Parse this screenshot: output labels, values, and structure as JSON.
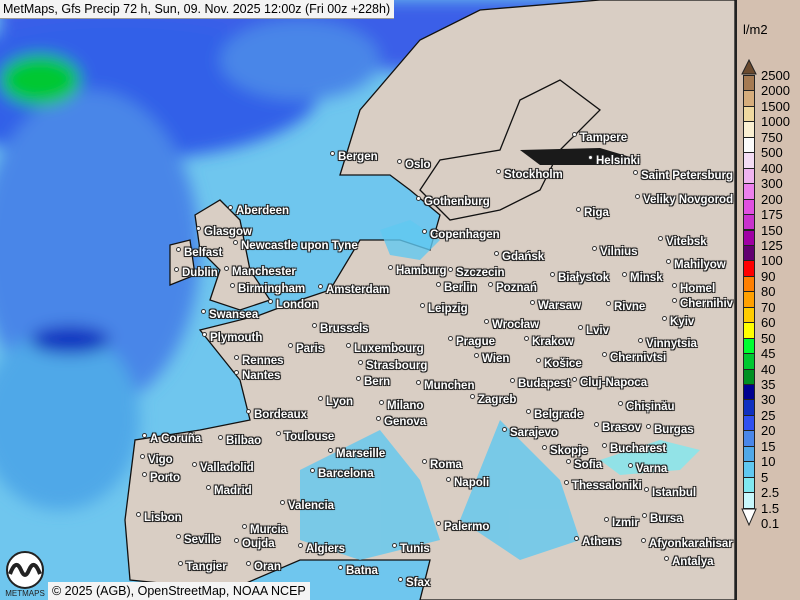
{
  "title": "MetMaps, Gfs Precip 72 h, Sun, 09. Nov. 2025 12:00z (Fri 00z +228h)",
  "credit": "© 2025 (AGB), OpenStreetMap, NOAA NCEP",
  "logo_text": "METMAPS",
  "legend": {
    "unit": "l/m2",
    "labels": [
      "2500",
      "2000",
      "1500",
      "1000",
      "750",
      "500",
      "400",
      "300",
      "200",
      "175",
      "150",
      "125",
      "100",
      "90",
      "80",
      "70",
      "60",
      "50",
      "45",
      "40",
      "35",
      "30",
      "25",
      "20",
      "15",
      "10",
      "5",
      "2.5",
      "1.5",
      "0.1"
    ],
    "colors": [
      "#a57a52",
      "#d6ad7c",
      "#f0d9a0",
      "#fbf0d2",
      "#fcfcfc",
      "#f4dcf4",
      "#f0b4f0",
      "#ec80ec",
      "#e050e0",
      "#c832cc",
      "#a000a4",
      "#620070",
      "#ff0000",
      "#ff7f00",
      "#ffa000",
      "#ffcc00",
      "#ffff00",
      "#00ff30",
      "#00c830",
      "#009020",
      "#000090",
      "#1030c0",
      "#3050f0",
      "#4a86e8",
      "#50a8e8",
      "#60c8f0",
      "#80e8f0",
      "#c8f8fc",
      "#ffffff"
    ],
    "top_color": "#6b4a2e"
  },
  "colors": {
    "land": "#d9cec4",
    "sea_precip": "#7fd6ef",
    "heavy_precip": "#2850e0"
  },
  "cities": [
    "Bergen",
    "Oslo",
    "Tampere",
    "Helsinki",
    "Saint Petersburg",
    "Stockholm",
    "Veliky Novgorod",
    "Aberdeen",
    "Gothenburg",
    "Riga",
    "Glasgow",
    "Copenhagen",
    "Vilnius",
    "Vitebsk",
    "Belfast",
    "Newcastle upon Tyne",
    "Gdańsk",
    "Minsk",
    "Mahilyow",
    "Dublin",
    "Manchester",
    "Hamburg",
    "Szczecin",
    "Białystok",
    "Birmingham",
    "Amsterdam",
    "Berlin",
    "Poznań",
    "Warsaw",
    "Homel",
    "Swansea",
    "London",
    "Chernihiv",
    "Leipzig",
    "Wrocław",
    "Brussels",
    "Plymouth",
    "Prague",
    "Krakow",
    "Lviv",
    "Rivne",
    "Kyiv",
    "Luxembourg",
    "Vinnytsia",
    "Paris",
    "Strasbourg",
    "Munchen",
    "Wien",
    "Košice",
    "Chernivtsi",
    "Rennes",
    "Nantes",
    "Budapest",
    "Cluj-Napoca",
    "Chișinău",
    "Bern",
    "Lyon",
    "Milano",
    "Zagreb",
    "Brasov",
    "Bordeaux",
    "Genova",
    "Belgrade",
    "Bucharest",
    "A Coruña",
    "Bilbao",
    "Toulouse",
    "Marseille",
    "Sarajevo",
    "Varna",
    "Sofia",
    "Burgas",
    "Vigo",
    "Skopje",
    "Roma",
    "Valladolid",
    "Barcelona",
    "Istanbul",
    "Porto",
    "Napoli",
    "Thessaloniki",
    "Bursa",
    "Madrid",
    "Valencia",
    "Afyonkarahisar",
    "Lisbon",
    "Izmir",
    "Athens",
    "Palermo",
    "Murcia",
    "Seville",
    "Antalya",
    "Algiers",
    "Tunis",
    "Tangier",
    "Oran",
    "Batna",
    "Sfax",
    "Oujda"
  ]
}
